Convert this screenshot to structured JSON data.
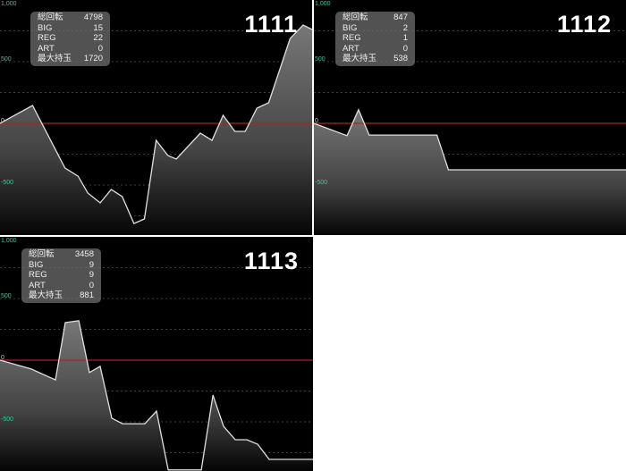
{
  "colors": {
    "background": "#000000",
    "zero_line": "#b22222",
    "line": "#e0e0e0",
    "axis_label": "#33cc99"
  },
  "stat_labels": [
    "総回転",
    "BIG",
    "REG",
    "ART",
    "最大持玉"
  ],
  "chart_data": [
    {
      "type": "area",
      "title": "1111",
      "stats": [
        "4798",
        "15",
        "22",
        "0",
        "1720"
      ],
      "ylim": [
        -1000,
        1000
      ],
      "yticks": [
        "1,000",
        "500",
        "0",
        "-500"
      ],
      "grid": true,
      "x": [
        0,
        500,
        1000,
        1200,
        1350,
        1540,
        1710,
        1880,
        2060,
        2220,
        2400,
        2580,
        2710,
        3080,
        3260,
        3430,
        3610,
        3770,
        3950,
        4130,
        4460,
        4660,
        4798
      ],
      "y": [
        0,
        145,
        -362,
        -428,
        -565,
        -645,
        -536,
        -594,
        -812,
        -775,
        -138,
        -261,
        -290,
        -80,
        -138,
        65,
        -65,
        -65,
        123,
        167,
        688,
        797,
        761
      ]
    },
    {
      "type": "area",
      "title": "1112",
      "stats": [
        "847",
        "2",
        "1",
        "0",
        "538"
      ],
      "ylim": [
        -1000,
        1000
      ],
      "yticks": [
        "1,000",
        "500",
        "0",
        "-500"
      ],
      "grid": true,
      "x": [
        0,
        90,
        121,
        150,
        334,
        365,
        847
      ],
      "y": [
        0,
        -100,
        110,
        -95,
        -95,
        -377,
        -377
      ]
    },
    {
      "type": "area",
      "title": "1113",
      "stats": [
        "3458",
        "9",
        "9",
        "0",
        "881"
      ],
      "ylim": [
        -1000,
        1000
      ],
      "yticks": [
        "1,000",
        "500",
        "0",
        "-500"
      ],
      "grid": true,
      "x": [
        0,
        346,
        613,
        721,
        870,
        988,
        1107,
        1235,
        1354,
        1601,
        1729,
        1858,
        2224,
        2352,
        2470,
        2599,
        2727,
        2846,
        2974,
        3458
      ],
      "y": [
        0,
        -72,
        -160,
        305,
        320,
        -100,
        -50,
        -470,
        -515,
        -515,
        -413,
        -890,
        -890,
        -283,
        -536,
        -645,
        -645,
        -681,
        -804,
        -804
      ]
    }
  ]
}
